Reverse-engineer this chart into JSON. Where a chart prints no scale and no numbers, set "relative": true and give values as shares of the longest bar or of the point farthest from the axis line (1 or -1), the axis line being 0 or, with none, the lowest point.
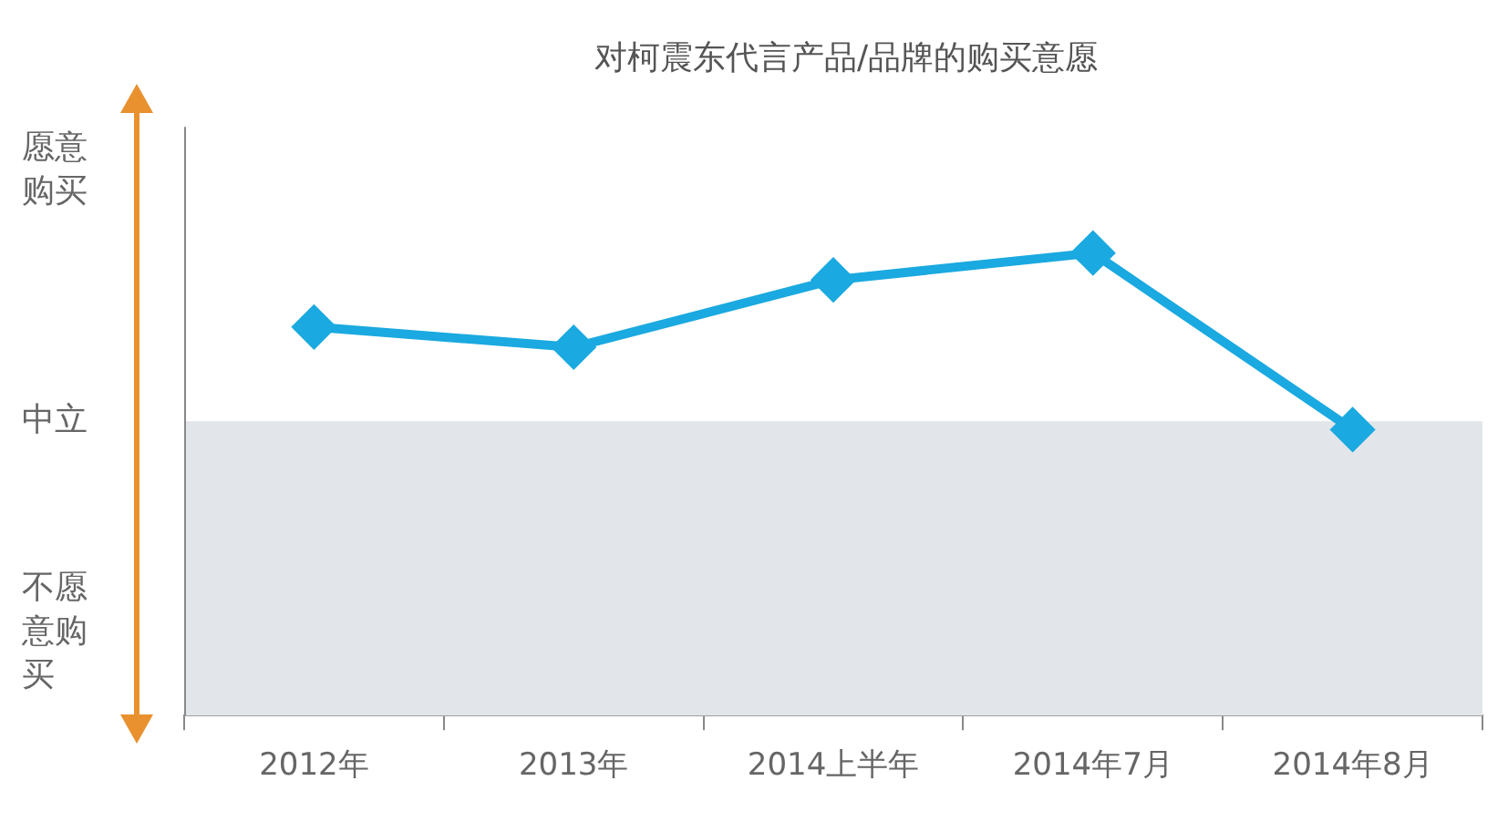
{
  "chart_data": {
    "type": "line",
    "title": "对柯震东代言产品/品牌的购买意愿",
    "categories": [
      "2012年",
      "2013年",
      "2014上半年",
      "2014年7月",
      "2014年8月"
    ],
    "series": [
      {
        "color": "#1aa9e0",
        "values": [
          0.56,
          0.44,
          0.84,
          1,
          -0.05
        ]
      }
    ],
    "relative": true,
    "annotations": [
      "愿意购买",
      "中立",
      "不愿意购买"
    ],
    "bands": [
      {
        "axis": "y",
        "from": -1.75,
        "to": 0,
        "color": "#e2e5e9"
      }
    ],
    "marker": "diamond",
    "line_style": "solid",
    "grid": false,
    "legend": false
  }
}
